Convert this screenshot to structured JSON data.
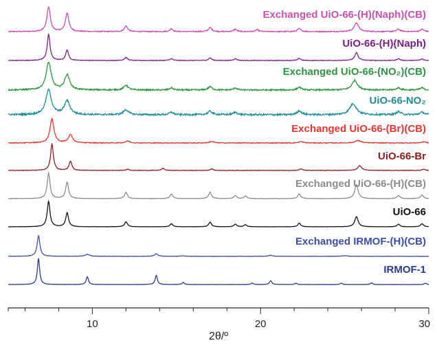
{
  "chart_data": {
    "type": "line",
    "title": "",
    "xlabel": "2θ/º",
    "ylabel": "",
    "xlim": [
      5,
      30
    ],
    "xticks": [
      10,
      20,
      30
    ],
    "grid": false,
    "legend": "labels placed above each trace",
    "series": [
      {
        "label": "Exchanged UiO-66-(H)(Naph)(CB)",
        "color": "#c94fb0",
        "peaks": [
          [
            7.4,
            1.0,
            0.12
          ],
          [
            8.5,
            0.75,
            0.12
          ],
          [
            12.0,
            0.22,
            0.12
          ],
          [
            14.7,
            0.12,
            0.1
          ],
          [
            17.0,
            0.16,
            0.12
          ],
          [
            18.5,
            0.1,
            0.1
          ],
          [
            19.8,
            0.08,
            0.1
          ],
          [
            22.3,
            0.12,
            0.12
          ],
          [
            25.7,
            0.35,
            0.16
          ],
          [
            28.2,
            0.1,
            0.12
          ],
          [
            29.6,
            0.1,
            0.12
          ]
        ],
        "noise": 0.04
      },
      {
        "label": "UiO-66-(H)(Naph)",
        "color": "#7b1f86",
        "peaks": [
          [
            7.4,
            1.0,
            0.1
          ],
          [
            8.5,
            0.4,
            0.1
          ],
          [
            12.0,
            0.12,
            0.1
          ],
          [
            14.7,
            0.07,
            0.1
          ],
          [
            17.0,
            0.1,
            0.1
          ],
          [
            18.5,
            0.07,
            0.1
          ],
          [
            22.3,
            0.08,
            0.1
          ],
          [
            25.7,
            0.3,
            0.12
          ],
          [
            28.2,
            0.07,
            0.1
          ],
          [
            29.6,
            0.06,
            0.1
          ]
        ],
        "noise": 0.02
      },
      {
        "label": "Exchanged UiO-66-(NO₂)(CB)",
        "color": "#2e9444",
        "peaks": [
          [
            7.4,
            1.0,
            0.18
          ],
          [
            8.5,
            0.55,
            0.18
          ],
          [
            12.0,
            0.18,
            0.15
          ],
          [
            14.7,
            0.08,
            0.12
          ],
          [
            17.0,
            0.12,
            0.14
          ],
          [
            18.5,
            0.08,
            0.12
          ],
          [
            22.3,
            0.1,
            0.14
          ],
          [
            25.6,
            0.35,
            0.2
          ],
          [
            28.2,
            0.08,
            0.14
          ],
          [
            29.6,
            0.08,
            0.14
          ]
        ],
        "noise": 0.05
      },
      {
        "label": "UiO-66-NO₂",
        "color": "#1f8f96",
        "peaks": [
          [
            7.4,
            1.0,
            0.2
          ],
          [
            8.5,
            0.55,
            0.2
          ],
          [
            12.0,
            0.2,
            0.18
          ],
          [
            14.7,
            0.1,
            0.15
          ],
          [
            17.0,
            0.14,
            0.16
          ],
          [
            18.5,
            0.1,
            0.14
          ],
          [
            22.3,
            0.16,
            0.16
          ],
          [
            25.5,
            0.45,
            0.24
          ],
          [
            28.2,
            0.12,
            0.16
          ],
          [
            29.6,
            0.1,
            0.16
          ]
        ],
        "noise": 0.07
      },
      {
        "label": "Exchanged UiO-66-(Br)(CB)",
        "color": "#e8342f",
        "peaks": [
          [
            7.6,
            1.0,
            0.14
          ],
          [
            8.7,
            0.35,
            0.14
          ],
          [
            12.1,
            0.08,
            0.14
          ],
          [
            17.1,
            0.06,
            0.14
          ],
          [
            22.4,
            0.06,
            0.14
          ],
          [
            25.8,
            0.1,
            0.2
          ],
          [
            29.7,
            0.05,
            0.14
          ]
        ],
        "noise": 0.03
      },
      {
        "label": "UiO-66-Br",
        "color": "#8b1c22",
        "peaks": [
          [
            7.6,
            1.0,
            0.1
          ],
          [
            8.7,
            0.35,
            0.1
          ],
          [
            12.1,
            0.05,
            0.1
          ],
          [
            14.2,
            0.08,
            0.1
          ],
          [
            17.1,
            0.06,
            0.1
          ],
          [
            22.4,
            0.06,
            0.1
          ],
          [
            25.9,
            0.18,
            0.14
          ],
          [
            29.7,
            0.05,
            0.1
          ]
        ],
        "noise": 0.015
      },
      {
        "label": "Exchanged UiO-66-(H)(CB)",
        "color": "#8c8c8c",
        "peaks": [
          [
            7.4,
            1.0,
            0.1
          ],
          [
            8.5,
            0.65,
            0.1
          ],
          [
            12.0,
            0.25,
            0.1
          ],
          [
            14.7,
            0.18,
            0.1
          ],
          [
            17.0,
            0.25,
            0.1
          ],
          [
            18.5,
            0.12,
            0.1
          ],
          [
            19.1,
            0.1,
            0.1
          ],
          [
            22.3,
            0.18,
            0.1
          ],
          [
            25.7,
            0.55,
            0.12
          ],
          [
            28.2,
            0.12,
            0.1
          ],
          [
            29.6,
            0.15,
            0.1
          ]
        ],
        "noise": 0.015
      },
      {
        "label": "UiO-66",
        "color": "#111111",
        "peaks": [
          [
            7.4,
            1.0,
            0.1
          ],
          [
            8.5,
            0.55,
            0.1
          ],
          [
            12.0,
            0.2,
            0.1
          ],
          [
            14.7,
            0.12,
            0.1
          ],
          [
            17.0,
            0.18,
            0.1
          ],
          [
            18.5,
            0.1,
            0.1
          ],
          [
            19.1,
            0.08,
            0.1
          ],
          [
            22.3,
            0.14,
            0.1
          ],
          [
            25.7,
            0.4,
            0.12
          ],
          [
            28.2,
            0.1,
            0.1
          ],
          [
            29.6,
            0.12,
            0.1
          ]
        ],
        "noise": 0.01
      },
      {
        "label": "Exchanged IRMOF-(H)(CB)",
        "color": "#3b4da8",
        "peaks": [
          [
            6.8,
            1.0,
            0.1
          ],
          [
            9.7,
            0.1,
            0.15
          ],
          [
            13.8,
            0.12,
            0.12
          ],
          [
            15.4,
            0.03,
            0.12
          ],
          [
            20.6,
            0.05,
            0.15
          ],
          [
            25.0,
            0.03,
            0.2
          ]
        ],
        "noise": 0.015
      },
      {
        "label": "IRMOF-1",
        "color": "#2b3a8f",
        "peaks": [
          [
            6.8,
            1.0,
            0.08
          ],
          [
            9.7,
            0.3,
            0.08
          ],
          [
            13.8,
            0.35,
            0.08
          ],
          [
            15.4,
            0.08,
            0.08
          ],
          [
            19.5,
            0.06,
            0.08
          ],
          [
            20.6,
            0.15,
            0.08
          ],
          [
            22.1,
            0.05,
            0.08
          ],
          [
            24.8,
            0.05,
            0.08
          ],
          [
            26.6,
            0.06,
            0.08
          ],
          [
            29.8,
            0.05,
            0.08
          ]
        ],
        "noise": 0.01
      }
    ]
  }
}
